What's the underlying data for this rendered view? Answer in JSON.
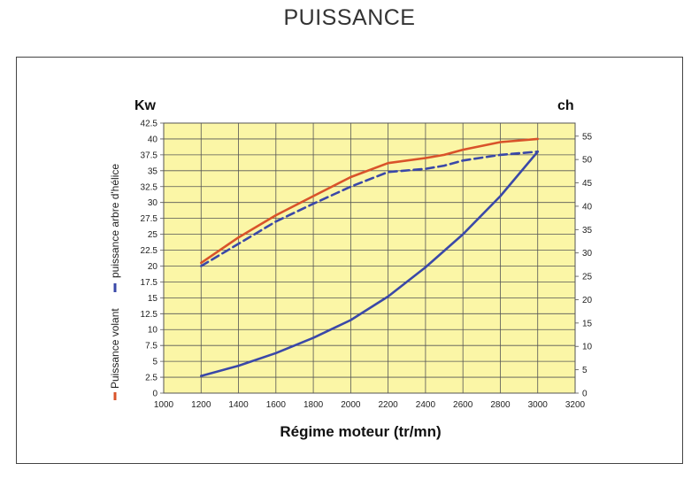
{
  "title": "PUISSANCE",
  "colors": {
    "plot_bg": "#fbf6a6",
    "grid": "#555555",
    "frame": "#444444",
    "series_volant": "#d9532a",
    "series_helice": "#3a48a8",
    "series_couple": "#3a48a8"
  },
  "chart_data": {
    "type": "line",
    "title": "PUISSANCE",
    "xlabel": "Régime moteur (tr/mn)",
    "ylabel_left": "Kw",
    "ylabel_right": "ch",
    "xlim": [
      1000,
      3200
    ],
    "ylim_left": [
      0,
      42.5
    ],
    "ylim_right": [
      0,
      57.8
    ],
    "x_ticks": [
      "1000",
      "1200",
      "1400",
      "1600",
      "1800",
      "2000",
      "2200",
      "2400",
      "2600",
      "2800",
      "3000",
      "3200"
    ],
    "y_left_ticks": [
      "0",
      "2.5",
      "5",
      "7.5",
      "10",
      "12.5",
      "15",
      "17.5",
      "20",
      "22.5",
      "25",
      "27.5",
      "30",
      "32.5",
      "35",
      "37.5",
      "40",
      "42.5"
    ],
    "y_right_ticks": [
      "0",
      "5",
      "10",
      "15",
      "20",
      "25",
      "30",
      "35",
      "40",
      "45",
      "50",
      "55"
    ],
    "grid": true,
    "legend_position": "left-vertical",
    "legend_entries": [
      "Puissance volant",
      "puissance arbre d'hélice"
    ],
    "series": [
      {
        "name": "Puissance volant",
        "style": "solid",
        "x": [
          1200,
          1400,
          1600,
          1800,
          2000,
          2200,
          2400,
          2500,
          2600,
          2800,
          3000
        ],
        "y": [
          20.5,
          24.5,
          28.0,
          31.0,
          34.0,
          36.2,
          37.0,
          37.5,
          38.3,
          39.5,
          40.0
        ]
      },
      {
        "name": "puissance arbre d'hélice",
        "style": "dashed",
        "x": [
          1200,
          1400,
          1600,
          1800,
          2000,
          2200,
          2400,
          2500,
          2600,
          2800,
          3000
        ],
        "y": [
          20.0,
          23.5,
          27.0,
          29.8,
          32.5,
          34.8,
          35.3,
          35.8,
          36.6,
          37.5,
          38.0
        ]
      },
      {
        "style": "solid",
        "x": [
          1200,
          1400,
          1600,
          1800,
          2000,
          2200,
          2400,
          2600,
          2800,
          3000
        ],
        "y": [
          2.7,
          4.3,
          6.3,
          8.7,
          11.5,
          15.2,
          19.8,
          25.0,
          31.0,
          38.0
        ]
      }
    ]
  }
}
